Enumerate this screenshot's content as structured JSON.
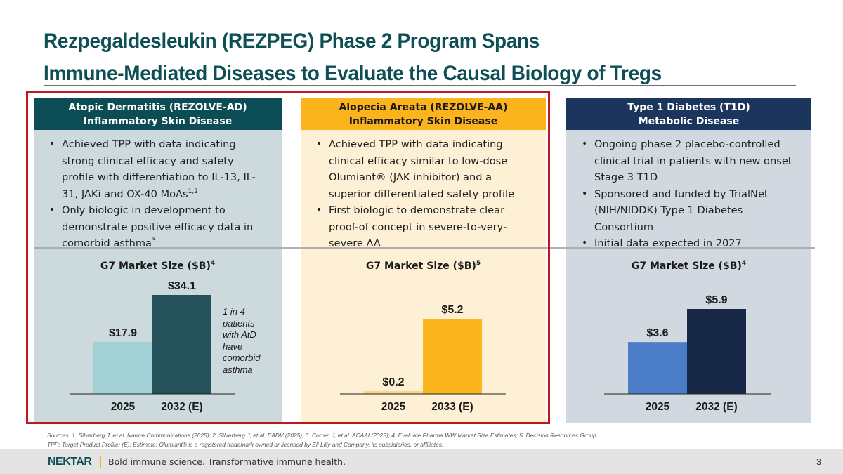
{
  "title": {
    "line1": "Rezpegaldesleukin (REZPEG) Phase 2 Program Spans",
    "line2": "Immune-Mediated Diseases to Evaluate the Causal Biology of Tregs"
  },
  "columns": [
    {
      "header_line1": "Atopic Dermatitis (REZOLVE-AD)",
      "header_line2": "Inflammatory Skin Disease",
      "bullets": [
        {
          "text": "Achieved TPP with data indicating strong clinical efficacy and safety profile with differentiation to IL-13, IL-31, JAKi and OX-40 MoAs",
          "sup": "1,2"
        },
        {
          "text": "Only biologic in development to demonstrate positive efficacy data in comorbid asthma",
          "sup": "3"
        }
      ],
      "chart_title": "G7 Market Size ($B)",
      "chart_title_sup": "4",
      "annotation": "1 in 4 patients with AtD have comorbid asthma"
    },
    {
      "header_line1": "Alopecia Areata (REZOLVE-AA)",
      "header_line2": "Inflammatory Skin Disease",
      "bullets": [
        {
          "text": "Achieved TPP with data indicating clinical efficacy similar to low-dose Olumiant® (JAK inhibitor) and a superior differentiated safety profile",
          "sup": ""
        },
        {
          "text": "First biologic to demonstrate clear proof-of concept in severe-to-very-severe AA",
          "sup": ""
        }
      ],
      "chart_title": "G7 Market Size ($B)",
      "chart_title_sup": "5"
    },
    {
      "header_line1": "Type 1 Diabetes (T1D)",
      "header_line2": "Metabolic Disease",
      "bullets": [
        {
          "text": "Ongoing phase 2 placebo-controlled clinical trial in patients with new onset Stage 3 T1D",
          "sup": ""
        },
        {
          "text": "Sponsored and funded by TrialNet (NIH/NIDDK) Type 1 Diabetes Consortium",
          "sup": ""
        },
        {
          "text": "Initial data expected in 2027",
          "sup": ""
        }
      ],
      "chart_title": "G7 Market Size ($B)",
      "chart_title_sup": "4"
    }
  ],
  "chart_data": [
    {
      "type": "bar",
      "title": "G7 Market Size ($B) — Atopic Dermatitis",
      "categories": [
        "2025",
        "2032 (E)"
      ],
      "values": [
        17.9,
        34.1
      ],
      "labels": [
        "$17.9",
        "$34.1"
      ],
      "colors": [
        "#a2d0d5",
        "#25525a"
      ],
      "xlabel": "",
      "ylabel": "",
      "unit": "$B",
      "grid": false,
      "legend": "none"
    },
    {
      "type": "bar",
      "title": "G7 Market Size ($B) — Alopecia Areata",
      "categories": [
        "2025",
        "2033 (E)"
      ],
      "values": [
        0.2,
        5.2
      ],
      "labels": [
        "$0.2",
        "$5.2"
      ],
      "colors": [
        "#fad58a",
        "#fbb61e"
      ],
      "xlabel": "",
      "ylabel": "",
      "unit": "$B",
      "grid": false,
      "legend": "none"
    },
    {
      "type": "bar",
      "title": "G7 Market Size ($B) — Type 1 Diabetes",
      "categories": [
        "2025",
        "2032 (E)"
      ],
      "values": [
        3.6,
        5.9
      ],
      "labels": [
        "$3.6",
        "$5.9"
      ],
      "colors": [
        "#4a7cc8",
        "#172846"
      ],
      "xlabel": "",
      "ylabel": "",
      "unit": "$B",
      "grid": false,
      "legend": "none"
    }
  ],
  "sources": {
    "line1": "Sources: 1. Silverberg J, et al. Nature Communications (2025); 2. Silverberg J, et al. EADV (2025); 3. Corren J, et al. ACAAI (2025); 4. Evaluate Pharma WW Market Size Estimates; 5. Decision Resources Group",
    "line2": "TPP: Target Product Profile; (E): Estimate; Olumiant® is a registered trademark owned or licensed by Eli Lilly and Company, its subsidiaries, or affiliates."
  },
  "footer": {
    "logo": "NEKTAR",
    "tagline": "Bold immune science. Transformative immune health.",
    "page_number": "3"
  },
  "colors": {
    "title": "#0d4f55",
    "highlight_border": "#c0161d",
    "ad_header": "#0c4d55",
    "aa_header": "#fbb41c",
    "t1d_header": "#1b355c"
  }
}
